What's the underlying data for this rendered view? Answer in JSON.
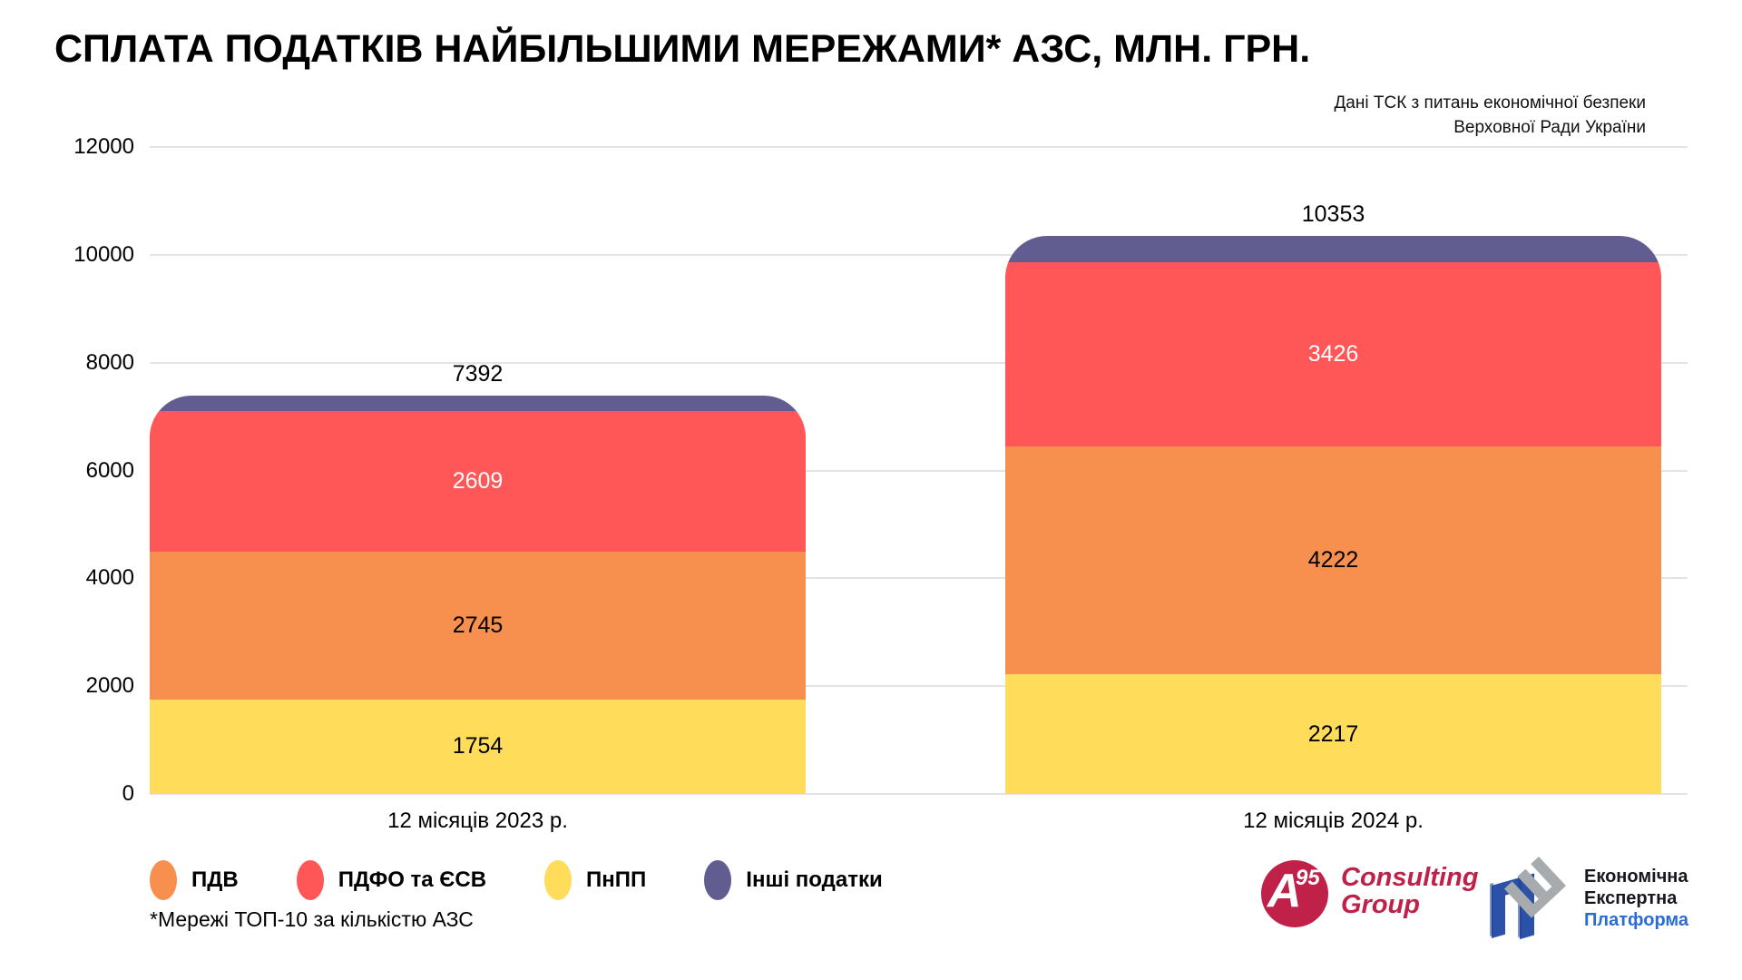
{
  "title": "СПЛАТА ПОДАТКІВ НАЙБІЛЬШИМИ МЕРЕЖАМИ* АЗС, МЛН. ГРН.",
  "source": {
    "line1": "Дані ТСК з питань економічної безпеки",
    "line2": "Верховної Ради України"
  },
  "footnote": "*Мережі ТОП-10 за кількістю АЗС",
  "colors": {
    "vat_orange": "#f78f4f",
    "pdfo_red": "#ff5757",
    "pnpp_yellow": "#ffdc59",
    "other_purple": "#615d91",
    "gridline": "#e4e4e4",
    "a95_crimson": "#bf2148",
    "eep_blue": "#2b52a8",
    "eep_gray": "#a8abae",
    "eep_text_blue": "#2b6bd4"
  },
  "chart_data": {
    "type": "bar",
    "stacked": true,
    "title": "СПЛАТА ПОДАТКІВ НАЙБІЛЬШИМИ МЕРЕЖАМИ* АЗС, МЛН. ГРН.",
    "categories": [
      "12 місяців 2023 р.",
      "12 місяців 2024 р."
    ],
    "series": [
      {
        "name": "ПнПП",
        "color": "#ffdc59",
        "values": [
          1754,
          2217
        ],
        "label_shown": true,
        "label_color": "#000000"
      },
      {
        "name": "ПДВ",
        "color": "#f78f4f",
        "values": [
          2745,
          4222
        ],
        "label_shown": true,
        "label_color": "#000000"
      },
      {
        "name": "ПДФО та ЄСВ",
        "color": "#ff5757",
        "values": [
          2609,
          3426
        ],
        "label_shown": true,
        "label_color": "#ffffff"
      },
      {
        "name": "Інші податки",
        "color": "#615d91",
        "values": [
          284,
          488
        ],
        "label_shown": false,
        "label_color": null
      }
    ],
    "totals": [
      7392,
      10353
    ],
    "ylim": [
      0,
      12000
    ],
    "yticks": [
      0,
      2000,
      4000,
      6000,
      8000,
      10000,
      12000
    ],
    "grid": true,
    "legend_position": "bottom-left"
  },
  "legend": [
    {
      "label": "ПДВ",
      "color": "#f78f4f"
    },
    {
      "label": "ПДФО та ЄСВ",
      "color": "#ff5757"
    },
    {
      "label": "ПнПП",
      "color": "#ffdc59"
    },
    {
      "label": "Інші податки",
      "color": "#615d91"
    }
  ],
  "logos": {
    "a95": {
      "badge_main": "A",
      "badge_sup": "95",
      "line1": "Consulting",
      "line2": "Group"
    },
    "eep": {
      "line1": "Економічна",
      "line2": "Експертна",
      "line3": "Платформа"
    }
  }
}
